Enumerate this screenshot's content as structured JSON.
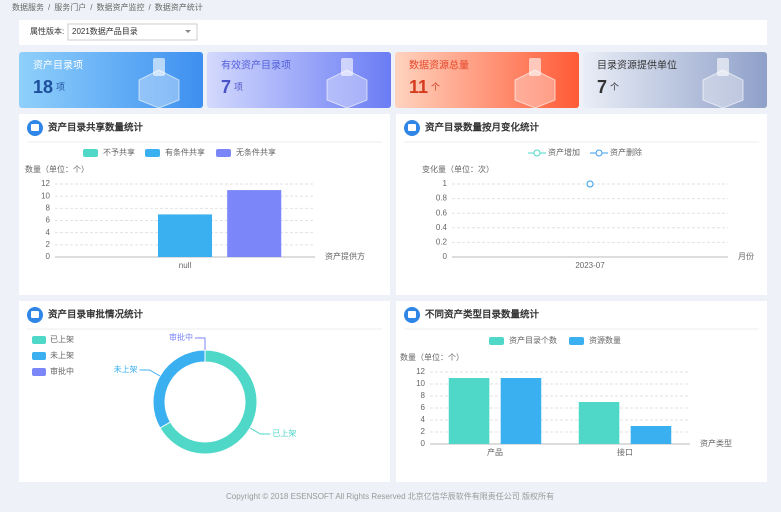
{
  "breadcrumb": {
    "items": [
      "数据服务",
      "服务门户",
      "数据资产监控",
      "数据资产统计"
    ],
    "separator": "/"
  },
  "filter": {
    "label": "属性版本:",
    "value": "2021数据产品目录"
  },
  "cards": [
    {
      "title": "资产目录项",
      "value": 18,
      "unit": "项"
    },
    {
      "title": "有效资产目录项",
      "value": 7,
      "unit": "项"
    },
    {
      "title": "数据资源总量",
      "value": 11,
      "unit": "个"
    },
    {
      "title": "目录资源提供单位",
      "value": 7,
      "unit": "个"
    }
  ],
  "chart_data": [
    {
      "type": "bar",
      "title": "资产目录共享数量统计",
      "y_label": "数量（单位：个）",
      "x_label": "资产提供方",
      "categories": [
        "null"
      ],
      "series": [
        {
          "name": "不予共享",
          "color": "#4fd8c8",
          "values": [
            0
          ]
        },
        {
          "name": "有条件共享",
          "color": "#3bb0f0",
          "values": [
            7
          ]
        },
        {
          "name": "无条件共享",
          "color": "#7b86f8",
          "values": [
            11
          ]
        }
      ],
      "ylim": [
        0,
        12
      ],
      "yticks": [
        0,
        2,
        4,
        6,
        8,
        10,
        12
      ],
      "grid": true
    },
    {
      "type": "line",
      "title": "资产目录数量按月变化统计",
      "y_label": "变化量（单位：次）",
      "x_label": "月份",
      "categories": [
        "2023-07"
      ],
      "series": [
        {
          "name": "资产增加",
          "color": "#4fd8c8",
          "values": [
            1
          ]
        },
        {
          "name": "资产删除",
          "color": "#3b9ef0",
          "values": [
            1
          ]
        }
      ],
      "ylim": [
        0,
        1
      ],
      "yticks": [
        0,
        0.2,
        0.4,
        0.6,
        0.8,
        1
      ],
      "grid": true
    },
    {
      "type": "pie",
      "title": "资产目录审批情况统计",
      "categories": [
        "已上架",
        "未上架",
        "审批中"
      ],
      "values": [
        12,
        6,
        0
      ],
      "colors": [
        "#4fd8c8",
        "#3bb0f0",
        "#7b86f8"
      ]
    },
    {
      "type": "bar",
      "title": "不同资产类型目录数量统计",
      "y_label": "数量（单位：个）",
      "x_label": "资产类型",
      "categories": [
        "产品",
        "接口"
      ],
      "series": [
        {
          "name": "资产目录个数",
          "color": "#4fd8c8",
          "values": [
            11,
            7
          ]
        },
        {
          "name": "资源数量",
          "color": "#3bb0f0",
          "values": [
            11,
            3
          ]
        }
      ],
      "ylim": [
        0,
        12
      ],
      "yticks": [
        0,
        2,
        4,
        6,
        8,
        10,
        12
      ],
      "grid": true
    }
  ],
  "footer": "Copyright © 2018 ESENSOFT All Rights Reserved 北京亿信华辰软件有限责任公司 版权所有"
}
